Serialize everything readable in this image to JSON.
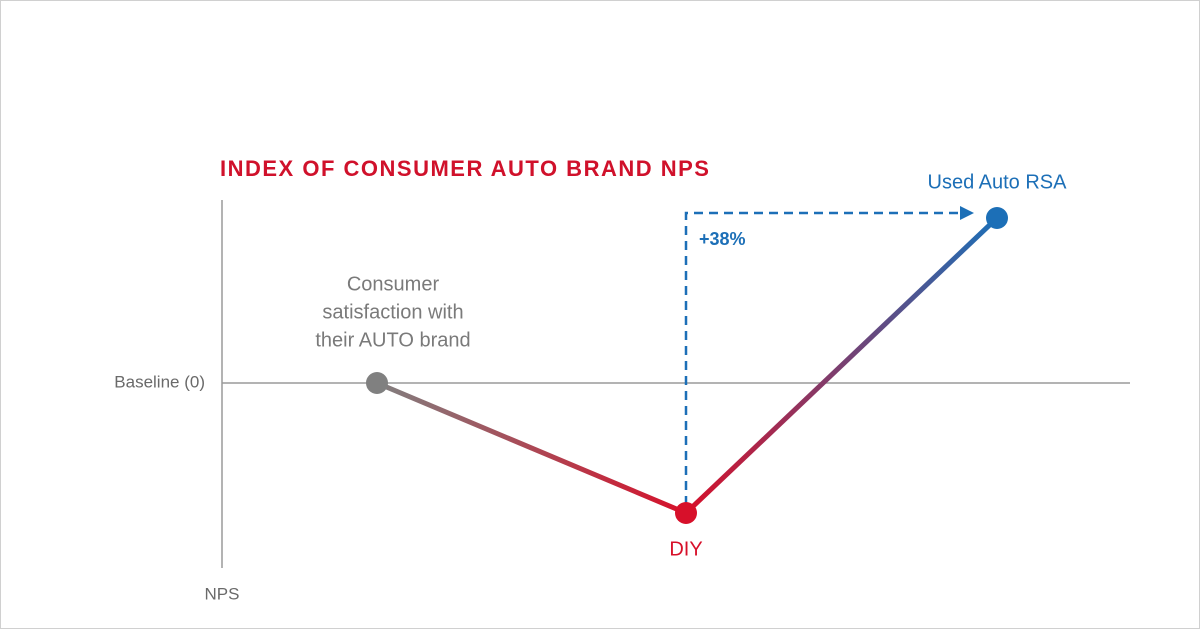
{
  "title": "INDEX OF CONSUMER AUTO BRAND NPS",
  "axis": {
    "baseline_label": "Baseline (0)",
    "y_label": "NPS"
  },
  "points": [
    {
      "label_lines": [
        "Consumer",
        "satisfaction with",
        "their AUTO brand"
      ]
    },
    {
      "label": "DIY"
    },
    {
      "label": "Used Auto RSA"
    }
  ],
  "annotation": "+38%"
}
